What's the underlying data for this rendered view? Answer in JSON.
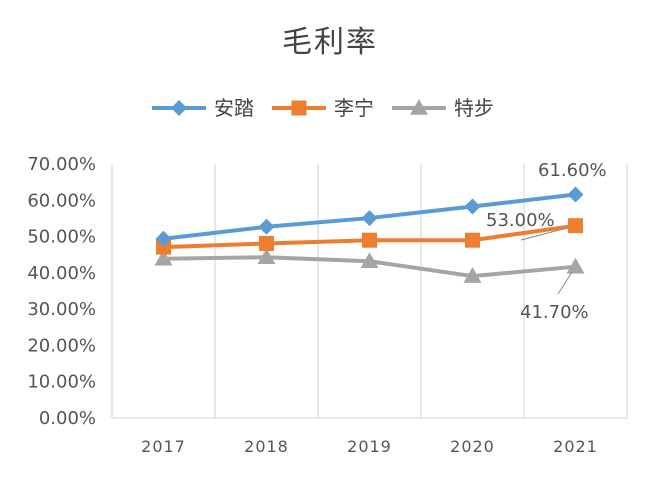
{
  "chart_data": {
    "type": "line",
    "title": "毛利率",
    "categories": [
      "2017",
      "2018",
      "2019",
      "2020",
      "2021"
    ],
    "ylim": [
      0,
      0.7
    ],
    "yticks": [
      "0.00%",
      "10.00%",
      "20.00%",
      "30.00%",
      "40.00%",
      "50.00%",
      "60.00%",
      "70.00%"
    ],
    "grid": "vertical",
    "legend_position": "top",
    "series": [
      {
        "name": "安踏",
        "values": [
          0.494,
          0.527,
          0.551,
          0.583,
          0.616
        ],
        "color": "#5B9BD5",
        "marker": "diamond"
      },
      {
        "name": "李宁",
        "values": [
          0.471,
          0.481,
          0.49,
          0.49,
          0.53
        ],
        "color": "#ED7D31",
        "marker": "square"
      },
      {
        "name": "特步",
        "values": [
          0.439,
          0.443,
          0.432,
          0.391,
          0.417
        ],
        "color": "#A5A5A5",
        "marker": "triangle"
      }
    ],
    "annotations": [
      "61.60%",
      "53.00%",
      "41.70%"
    ]
  }
}
